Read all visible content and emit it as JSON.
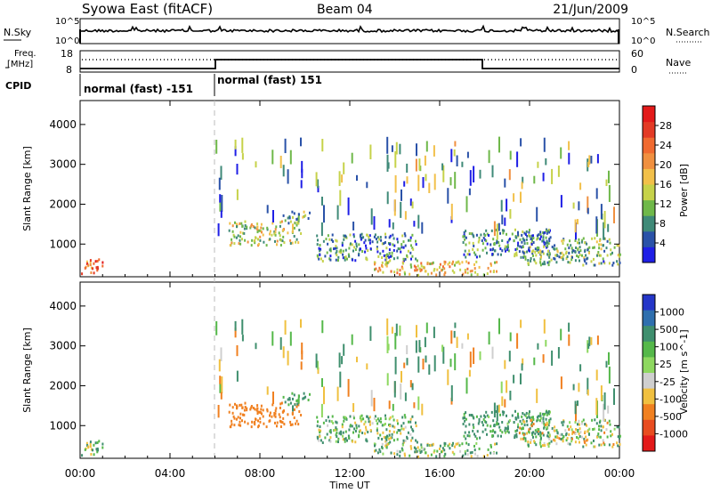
{
  "header": {
    "station": "Syowa East (fitACF)",
    "beam": "Beam 04",
    "date": "21/Jun/2009"
  },
  "top_panels": {
    "nsky_label": "N.Sky",
    "nsearch_label": "N.Search",
    "nsky_ticks": [
      "10^5",
      "10^0"
    ],
    "nsearch_ticks": [
      "10^5",
      "10^0"
    ],
    "freq_label_1": "Freq.",
    "freq_label_2": "[MHz]",
    "freq_ticks": [
      "18",
      "8"
    ],
    "nave_label": "Nave",
    "nave_ticks": [
      "60",
      "0"
    ],
    "cpid_label": "CPID",
    "cpid_segments": [
      {
        "label": "normal (fast) -151",
        "start_hour": 0,
        "end_hour": 6
      },
      {
        "label": "normal (fast) 151",
        "start_hour": 6,
        "end_hour": 24
      }
    ]
  },
  "x_axis": {
    "label": "Time UT",
    "ticks": [
      "00:00",
      "04:00",
      "08:00",
      "12:00",
      "16:00",
      "20:00",
      "00:00"
    ]
  },
  "chart_data": [
    {
      "type": "heatmap",
      "quantity": "power",
      "xlabel": "Time UT",
      "ylabel": "Slant Range [km]",
      "xlim": [
        0,
        24
      ],
      "ylim": [
        180,
        4600
      ],
      "yticks": [
        1000,
        2000,
        3000,
        4000
      ],
      "colorbar": {
        "label": "Power [dB]",
        "ticks": [
          "4",
          "8",
          "12",
          "16",
          "20",
          "24",
          "28"
        ],
        "colors": [
          "#1f1fe6",
          "#2a52a8",
          "#3f8a78",
          "#6fb84a",
          "#c6d24a",
          "#f2c04a",
          "#f09040",
          "#f06a30",
          "#e33a25",
          "#e31a1a"
        ]
      },
      "echo_regions": [
        {
          "t0": 0.0,
          "t1": 1.0,
          "r0": 250,
          "r1": 650,
          "value": 24
        },
        {
          "t0": 6.6,
          "t1": 9.8,
          "r0": 1000,
          "r1": 1600,
          "value": 14
        },
        {
          "t0": 9.0,
          "t1": 10.2,
          "r0": 1550,
          "r1": 1850,
          "value": 10
        },
        {
          "t0": 10.5,
          "t1": 15.0,
          "r0": 600,
          "r1": 1300,
          "value": 8
        },
        {
          "t0": 13.0,
          "t1": 18.5,
          "r0": 250,
          "r1": 600,
          "value": 18
        },
        {
          "t0": 17.0,
          "t1": 21.0,
          "r0": 700,
          "r1": 1400,
          "value": 8
        },
        {
          "t0": 19.5,
          "t1": 24.0,
          "r0": 500,
          "r1": 1200,
          "value": 10
        }
      ]
    },
    {
      "type": "heatmap",
      "quantity": "velocity",
      "xlabel": "Time UT",
      "ylabel": "Slant Range [km]",
      "xlim": [
        0,
        24
      ],
      "ylim": [
        180,
        4600
      ],
      "yticks": [
        1000,
        2000,
        3000,
        4000
      ],
      "colorbar": {
        "label": "Velocity [m s^-1]",
        "ticks": [
          "1000",
          "500",
          "100",
          "25",
          "-25",
          "-100",
          "-500",
          "-1000"
        ],
        "colors": [
          "#2436c8",
          "#2f6fae",
          "#3f8f6e",
          "#55b84a",
          "#8ed860",
          "#cfcfcf",
          "#f0c040",
          "#f08020",
          "#e84c20",
          "#e31a1a"
        ]
      },
      "echo_regions": [
        {
          "t0": 0.0,
          "t1": 1.0,
          "r0": 250,
          "r1": 650,
          "value": 50
        },
        {
          "t0": 6.6,
          "t1": 9.8,
          "r0": 1000,
          "r1": 1600,
          "value": -300
        },
        {
          "t0": 9.0,
          "t1": 10.2,
          "r0": 1550,
          "r1": 1850,
          "value": 200
        },
        {
          "t0": 10.5,
          "t1": 15.0,
          "r0": 600,
          "r1": 1300,
          "value": 80
        },
        {
          "t0": 13.0,
          "t1": 18.5,
          "r0": 250,
          "r1": 600,
          "value": 60
        },
        {
          "t0": 17.0,
          "t1": 21.0,
          "r0": 700,
          "r1": 1400,
          "value": 150
        },
        {
          "t0": 19.5,
          "t1": 24.0,
          "r0": 500,
          "r1": 1200,
          "value": 0
        }
      ]
    }
  ]
}
